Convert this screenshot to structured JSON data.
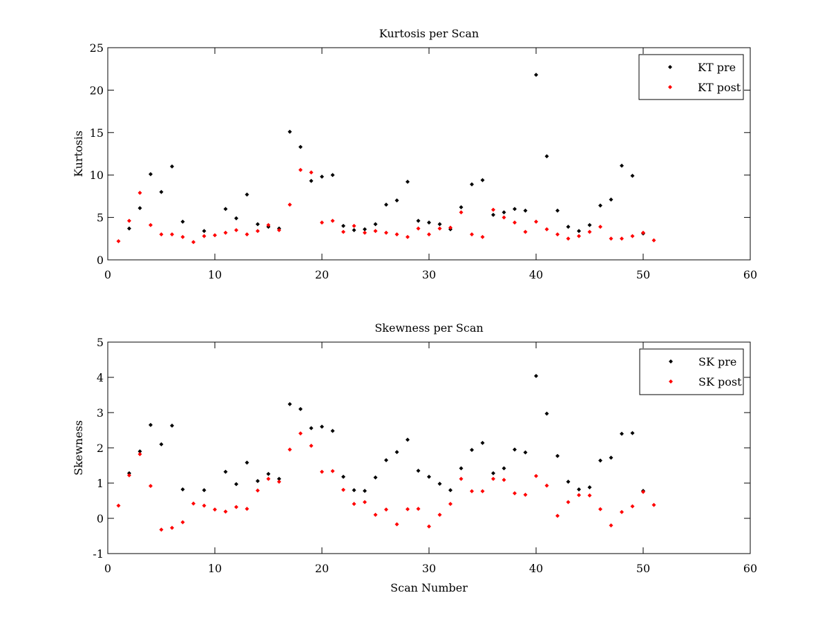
{
  "chart_data": [
    {
      "type": "scatter",
      "title": "Kurtosis per Scan",
      "xlabel": "",
      "ylabel": "Kurtosis",
      "xlim": [
        0,
        60
      ],
      "ylim": [
        0,
        25
      ],
      "xticks": [
        0,
        10,
        20,
        30,
        40,
        50,
        60
      ],
      "yticks": [
        0,
        5,
        10,
        15,
        20,
        25
      ],
      "legend_placement": "top-right",
      "grid": false,
      "series": [
        {
          "name": "KT pre",
          "color": "#000000",
          "x": [
            2,
            3,
            4,
            5,
            6,
            7,
            9,
            11,
            12,
            13,
            14,
            15,
            16,
            17,
            18,
            19,
            20,
            21,
            22,
            23,
            24,
            25,
            26,
            27,
            28,
            29,
            30,
            31,
            32,
            33,
            34,
            35,
            36,
            37,
            38,
            39,
            40,
            41,
            42,
            43,
            44,
            45,
            46,
            47,
            48,
            49,
            50
          ],
          "y": [
            3.7,
            6.1,
            10.1,
            8.0,
            11.0,
            4.5,
            3.4,
            6.0,
            4.9,
            7.7,
            4.2,
            3.9,
            3.7,
            15.1,
            13.3,
            9.3,
            9.8,
            10.0,
            4.0,
            3.5,
            3.6,
            4.2,
            6.5,
            7.0,
            9.2,
            4.6,
            4.4,
            4.2,
            3.6,
            6.2,
            8.9,
            9.4,
            5.3,
            5.6,
            6.0,
            5.8,
            21.8,
            12.2,
            5.8,
            3.9,
            3.4,
            4.1,
            6.4,
            7.1,
            11.1,
            9.9,
            3.1
          ]
        },
        {
          "name": "KT post",
          "color": "#ff0000",
          "x": [
            1,
            2,
            3,
            4,
            5,
            6,
            7,
            8,
            9,
            10,
            11,
            12,
            13,
            14,
            15,
            16,
            17,
            18,
            19,
            20,
            21,
            22,
            23,
            24,
            25,
            26,
            27,
            28,
            29,
            30,
            31,
            32,
            33,
            34,
            35,
            36,
            37,
            38,
            39,
            40,
            41,
            42,
            43,
            44,
            45,
            46,
            47,
            48,
            49,
            50,
            51
          ],
          "y": [
            2.2,
            4.6,
            7.9,
            4.1,
            3.0,
            3.0,
            2.7,
            2.1,
            2.8,
            2.9,
            3.2,
            3.5,
            3.0,
            3.4,
            4.1,
            3.5,
            6.5,
            10.6,
            10.3,
            4.4,
            4.6,
            3.3,
            4.0,
            3.2,
            3.4,
            3.2,
            3.0,
            2.7,
            3.7,
            3.0,
            3.7,
            3.8,
            5.6,
            3.0,
            2.7,
            5.9,
            5.0,
            4.4,
            3.3,
            4.5,
            3.6,
            3.0,
            2.5,
            2.8,
            3.3,
            3.9,
            2.5,
            2.5,
            2.8,
            3.2,
            2.3
          ]
        }
      ]
    },
    {
      "type": "scatter",
      "title": "Skewness per Scan",
      "xlabel": "Scan Number",
      "ylabel": "Skewness",
      "xlim": [
        0,
        60
      ],
      "ylim": [
        -1,
        5
      ],
      "xticks": [
        0,
        10,
        20,
        30,
        40,
        50,
        60
      ],
      "yticks": [
        -1,
        0,
        1,
        2,
        3,
        4,
        5
      ],
      "legend_placement": "top-right",
      "grid": false,
      "series": [
        {
          "name": "SK pre",
          "color": "#000000",
          "x": [
            2,
            3,
            4,
            5,
            6,
            7,
            9,
            11,
            12,
            13,
            14,
            15,
            16,
            17,
            18,
            19,
            20,
            21,
            22,
            23,
            24,
            25,
            26,
            27,
            28,
            29,
            30,
            31,
            32,
            33,
            34,
            35,
            36,
            37,
            38,
            39,
            40,
            41,
            42,
            43,
            44,
            45,
            46,
            47,
            48,
            49,
            50
          ],
          "y": [
            1.28,
            1.9,
            2.65,
            2.1,
            2.63,
            0.82,
            0.8,
            1.32,
            0.97,
            1.58,
            1.06,
            1.26,
            1.12,
            3.24,
            3.1,
            2.56,
            2.6,
            2.48,
            1.18,
            0.8,
            0.78,
            1.16,
            1.65,
            1.88,
            2.23,
            1.35,
            1.18,
            0.98,
            0.8,
            1.42,
            1.94,
            2.14,
            1.28,
            1.42,
            1.95,
            1.87,
            4.04,
            2.97,
            1.77,
            1.04,
            0.82,
            0.88,
            1.64,
            1.72,
            2.4,
            2.42,
            0.78
          ]
        },
        {
          "name": "SK post",
          "color": "#ff0000",
          "x": [
            1,
            2,
            3,
            4,
            5,
            6,
            7,
            8,
            9,
            10,
            11,
            12,
            13,
            14,
            15,
            16,
            17,
            18,
            19,
            20,
            21,
            22,
            23,
            24,
            25,
            26,
            27,
            28,
            29,
            30,
            31,
            32,
            33,
            34,
            35,
            36,
            37,
            38,
            39,
            40,
            41,
            42,
            43,
            44,
            45,
            46,
            47,
            48,
            49,
            50,
            51
          ],
          "y": [
            0.36,
            1.22,
            1.82,
            0.92,
            -0.32,
            -0.27,
            -0.11,
            0.42,
            0.36,
            0.25,
            0.19,
            0.32,
            0.27,
            0.79,
            1.12,
            1.04,
            1.95,
            2.41,
            2.06,
            1.32,
            1.34,
            0.81,
            0.41,
            0.46,
            0.1,
            0.25,
            -0.17,
            0.26,
            0.27,
            -0.23,
            0.1,
            0.41,
            1.12,
            0.77,
            0.77,
            1.12,
            1.09,
            0.71,
            0.67,
            1.2,
            0.93,
            0.07,
            0.46,
            0.66,
            0.65,
            0.26,
            -0.2,
            0.18,
            0.34,
            0.75,
            0.38
          ]
        }
      ]
    }
  ]
}
